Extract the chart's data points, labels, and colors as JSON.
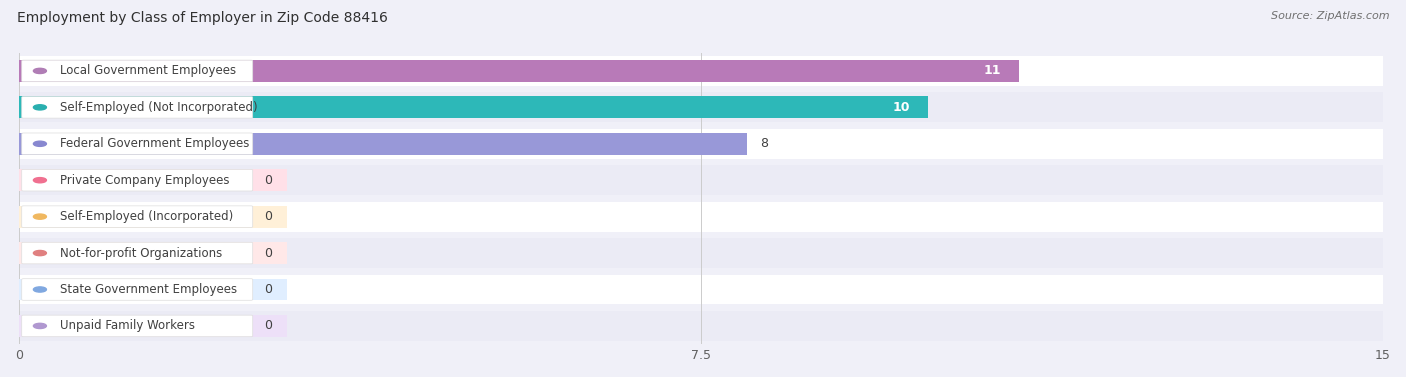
{
  "title": "Employment by Class of Employer in Zip Code 88416",
  "source": "Source: ZipAtlas.com",
  "categories": [
    "Local Government Employees",
    "Self-Employed (Not Incorporated)",
    "Federal Government Employees",
    "Private Company Employees",
    "Self-Employed (Incorporated)",
    "Not-for-profit Organizations",
    "State Government Employees",
    "Unpaid Family Workers"
  ],
  "values": [
    11,
    10,
    8,
    0,
    0,
    0,
    0,
    0
  ],
  "bar_colors": [
    "#b87ab8",
    "#2db8b8",
    "#9898d8",
    "#f090a8",
    "#f5c880",
    "#e89898",
    "#90b8e8",
    "#c0a8d8"
  ],
  "dot_colors": [
    "#b07db5",
    "#2aafaf",
    "#8888d0",
    "#f07090",
    "#f0b860",
    "#e08080",
    "#80a8e0",
    "#b098d0"
  ],
  "label_bg_colors": [
    "#f0e8f8",
    "#d8f8f8",
    "#e8e8ff",
    "#ffe0e8",
    "#fff0d8",
    "#ffe8e8",
    "#e0eeff",
    "#ede0f8"
  ],
  "xlim": [
    0,
    15
  ],
  "xticks": [
    0,
    7.5,
    15
  ],
  "fig_bg": "#f0f0f8",
  "row_even_bg": "#ffffff",
  "row_odd_bg": "#ebebf5",
  "title_fontsize": 10,
  "label_fontsize": 8.5,
  "value_fontsize": 9,
  "value_inside_color": "#ffffff",
  "value_outside_color": "#404040"
}
